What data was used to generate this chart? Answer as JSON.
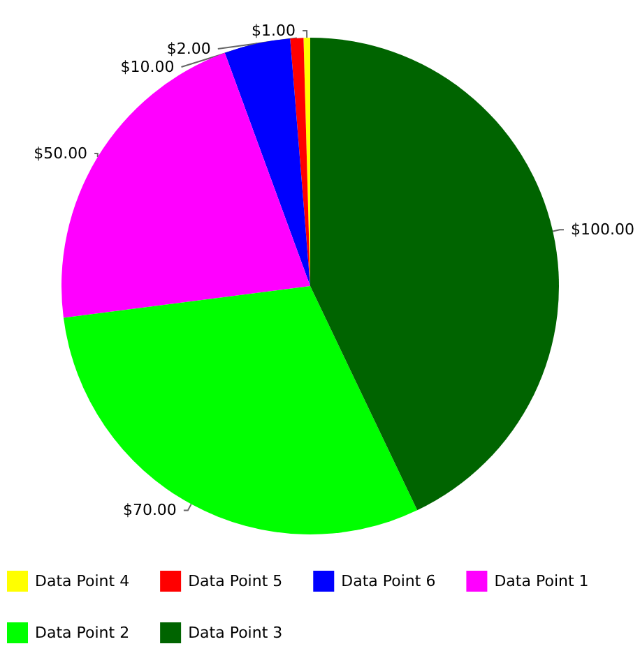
{
  "chart_data": {
    "type": "pie",
    "categories": [
      "Data Point 4",
      "Data Point 5",
      "Data Point 6",
      "Data Point 1",
      "Data Point 2",
      "Data Point 3"
    ],
    "values": [
      1,
      2,
      10,
      50,
      70,
      100
    ],
    "colors": [
      "#ffff00",
      "#ff0000",
      "#0000ff",
      "#ff00ff",
      "#00ff00",
      "#006400"
    ],
    "value_labels": [
      "$1.00",
      "$2.00",
      "$10.00",
      "$50.00",
      "$70.00",
      "$100.00"
    ],
    "legend": "bottom"
  }
}
